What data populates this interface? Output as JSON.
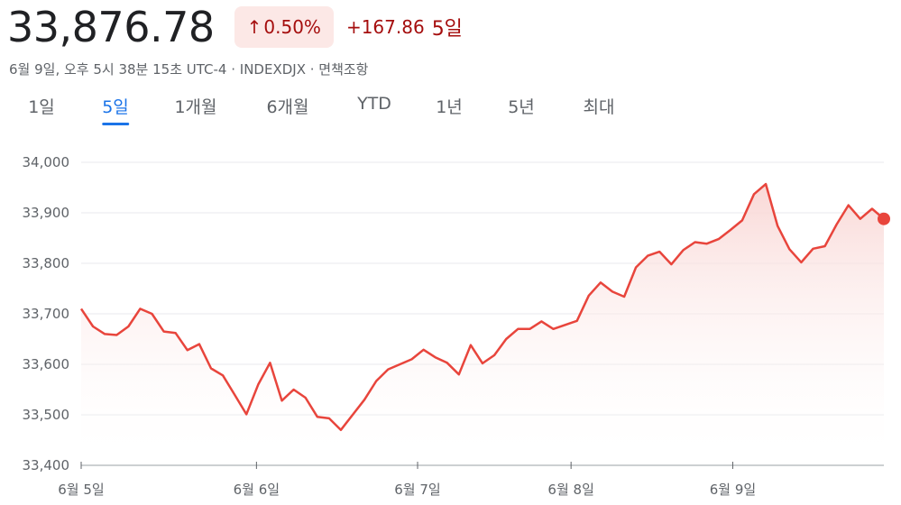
{
  "header": {
    "price": "33,876.78",
    "pct_change": "0.50%",
    "arrow": "↑",
    "abs_change": "+167.86",
    "period": "5일",
    "subline": "6월 9일, 오후 5시 38분 15초 UTC-4 · INDEXDJX · 면책조항"
  },
  "tabs": [
    {
      "label": "1일",
      "active": false
    },
    {
      "label": "5일",
      "active": true
    },
    {
      "label": "1개월",
      "active": false
    },
    {
      "label": "6개월",
      "active": false
    },
    {
      "label": "YTD",
      "active": false
    },
    {
      "label": "1년",
      "active": false
    },
    {
      "label": "5년",
      "active": false
    },
    {
      "label": "최대",
      "active": false
    }
  ],
  "colors": {
    "line": "#e8453c",
    "fill_top": "#f9d6d4",
    "accent_blue": "#1a73e8",
    "negative_text": "#a50e0e",
    "badge_bg": "#fce8e6",
    "grid": "#e8eaed"
  },
  "chart_data": {
    "type": "area",
    "title": "",
    "xlabel": "",
    "ylabel": "",
    "ylim": [
      33400,
      34000
    ],
    "yticks": [
      34000,
      33900,
      33800,
      33700,
      33600,
      33500,
      33400
    ],
    "ytick_labels": [
      "34,000",
      "33,900",
      "33,800",
      "33,700",
      "33,600",
      "33,500",
      "33,400"
    ],
    "xtick_labels": [
      "6월 5일",
      "6월 6일",
      "6월 7일",
      "6월 8일",
      "6월 9일"
    ],
    "grid": true,
    "legend": "none",
    "series": [
      {
        "values": [
          33710,
          33675,
          33660,
          33658,
          33675,
          33710,
          33700,
          33665,
          33662,
          33628,
          33640,
          33592,
          33578,
          33540,
          33501,
          33560,
          33603,
          33528,
          33550,
          33534,
          33496,
          33493,
          33470,
          33500,
          33530,
          33567,
          33590,
          33600,
          33610,
          33629,
          33614,
          33603,
          33580,
          33638,
          33602,
          33618,
          33650,
          33670,
          33670,
          33685,
          33670,
          33678,
          33686,
          33736,
          33762,
          33744,
          33734,
          33792,
          33815,
          33823,
          33798,
          33826,
          33842,
          33839,
          33848,
          33866,
          33885,
          33937,
          33957,
          33874,
          33828,
          33802,
          33829,
          33834,
          33877,
          33915,
          33888,
          33908,
          33888
        ]
      }
    ],
    "last_value": 33888
  }
}
